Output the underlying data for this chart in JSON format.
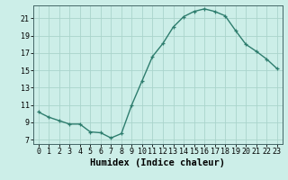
{
  "x": [
    0,
    1,
    2,
    3,
    4,
    5,
    6,
    7,
    8,
    9,
    10,
    11,
    12,
    13,
    14,
    15,
    16,
    17,
    18,
    19,
    20,
    21,
    22,
    23
  ],
  "y": [
    10.2,
    9.6,
    9.2,
    8.8,
    8.8,
    7.9,
    7.8,
    7.2,
    7.7,
    11.0,
    13.8,
    16.6,
    18.1,
    20.0,
    21.2,
    21.8,
    22.1,
    21.8,
    21.3,
    19.6,
    18.0,
    17.2,
    16.3,
    15.2
  ],
  "line_color": "#2e7d6e",
  "bg_color": "#cceee8",
  "grid_color": "#aad4cc",
  "xlabel": "Humidex (Indice chaleur)",
  "xlim": [
    -0.5,
    23.5
  ],
  "ylim": [
    6.5,
    22.5
  ],
  "yticks": [
    7,
    9,
    11,
    13,
    15,
    17,
    19,
    21
  ],
  "xticks": [
    0,
    1,
    2,
    3,
    4,
    5,
    6,
    7,
    8,
    9,
    10,
    11,
    12,
    13,
    14,
    15,
    16,
    17,
    18,
    19,
    20,
    21,
    22,
    23
  ],
  "xlabel_fontsize": 7.5,
  "tick_fontsize": 6.0,
  "marker": "+",
  "markersize": 3.5,
  "linewidth": 1.0,
  "markeredgewidth": 0.9
}
